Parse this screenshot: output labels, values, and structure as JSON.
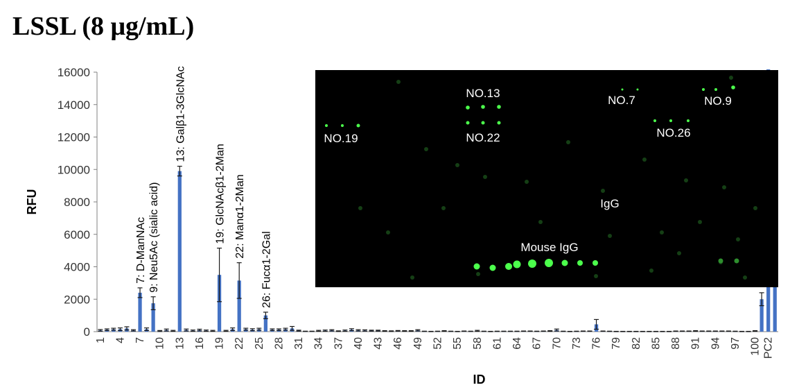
{
  "title": "LSSL (8 μg/mL)",
  "chart_data": {
    "type": "bar",
    "xlabel": "ID",
    "ylabel": "RFU",
    "ylim": [
      0,
      16000
    ],
    "yticks": [
      0,
      2000,
      4000,
      6000,
      8000,
      10000,
      12000,
      14000,
      16000
    ],
    "grid": false,
    "bar_color": "#4472C4",
    "categories": [
      "1",
      "2",
      "3",
      "4",
      "5",
      "6",
      "7",
      "8",
      "9",
      "10",
      "11",
      "12",
      "13",
      "14",
      "15",
      "16",
      "17",
      "18",
      "19",
      "20",
      "21",
      "22",
      "23",
      "24",
      "25",
      "26",
      "27",
      "28",
      "29",
      "30",
      "31",
      "32",
      "33",
      "34",
      "35",
      "36",
      "37",
      "38",
      "39",
      "40",
      "41",
      "42",
      "43",
      "44",
      "45",
      "46",
      "47",
      "48",
      "49",
      "50",
      "51",
      "52",
      "53",
      "54",
      "55",
      "56",
      "57",
      "58",
      "59",
      "60",
      "61",
      "62",
      "63",
      "64",
      "65",
      "66",
      "67",
      "68",
      "69",
      "70",
      "71",
      "72",
      "73",
      "74",
      "75",
      "76",
      "77",
      "78",
      "79",
      "80",
      "81",
      "82",
      "83",
      "84",
      "85",
      "86",
      "87",
      "88",
      "89",
      "90",
      "91",
      "92",
      "93",
      "94",
      "95",
      "96",
      "97",
      "98",
      "99",
      "100",
      "PC1",
      "PC2",
      "PC3"
    ],
    "tick_labels": [
      "1",
      "4",
      "7",
      "10",
      "13",
      "16",
      "19",
      "22",
      "25",
      "28",
      "31",
      "34",
      "37",
      "40",
      "43",
      "46",
      "49",
      "52",
      "55",
      "58",
      "61",
      "64",
      "67",
      "70",
      "73",
      "76",
      "79",
      "82",
      "85",
      "88",
      "91",
      "94",
      "97",
      "100",
      "PC2"
    ],
    "values": [
      80,
      120,
      150,
      150,
      200,
      80,
      2400,
      150,
      1750,
      40,
      100,
      50,
      9900,
      100,
      60,
      100,
      60,
      50,
      3500,
      50,
      150,
      3150,
      150,
      120,
      150,
      1000,
      120,
      120,
      150,
      200,
      60,
      20,
      20,
      50,
      60,
      80,
      30,
      60,
      120,
      80,
      70,
      60,
      60,
      40,
      30,
      50,
      40,
      40,
      80,
      20,
      10,
      20,
      40,
      20,
      10,
      30,
      20,
      50,
      20,
      10,
      20,
      20,
      20,
      20,
      30,
      30,
      20,
      30,
      40,
      100,
      20,
      10,
      20,
      30,
      30,
      450,
      30,
      20,
      10,
      10,
      10,
      10,
      10,
      10,
      10,
      10,
      10,
      30,
      30,
      30,
      40,
      30,
      30,
      30,
      30,
      30,
      20,
      10,
      10,
      40,
      2000,
      17000,
      4200
    ],
    "errors": [
      50,
      50,
      60,
      80,
      100,
      40,
      300,
      80,
      400,
      30,
      60,
      30,
      300,
      60,
      40,
      50,
      40,
      30,
      1650,
      30,
      80,
      1100,
      60,
      60,
      60,
      200,
      50,
      50,
      60,
      120,
      30,
      10,
      10,
      30,
      40,
      40,
      20,
      40,
      60,
      40,
      40,
      30,
      30,
      20,
      20,
      20,
      20,
      20,
      40,
      10,
      10,
      10,
      20,
      10,
      10,
      10,
      10,
      30,
      10,
      10,
      10,
      10,
      10,
      10,
      10,
      10,
      10,
      10,
      20,
      60,
      10,
      10,
      10,
      10,
      10,
      300,
      10,
      10,
      10,
      10,
      10,
      10,
      10,
      10,
      10,
      10,
      10,
      10,
      10,
      10,
      20,
      10,
      10,
      10,
      10,
      10,
      10,
      10,
      10,
      20,
      400,
      0,
      80
    ],
    "annotations": [
      {
        "id": "7",
        "text": "7: D-ManNAc"
      },
      {
        "id": "9",
        "text": "9: Neu5Ac (sialic acid)"
      },
      {
        "id": "13",
        "text": "13: Galβ1-3GlcNAc"
      },
      {
        "id": "19",
        "text": "19: GlcNAcβ1-2Man"
      },
      {
        "id": "22",
        "text": "22: Manα1-2Man"
      },
      {
        "id": "26",
        "text": "26: Fucα1-2Gal"
      }
    ]
  },
  "inset": {
    "background": "#000000",
    "spot_color": "#4cff4c",
    "labels": [
      "NO.13",
      "NO.7",
      "NO.9",
      "NO.19",
      "NO.22",
      "NO.26",
      "IgG",
      "Mouse IgG"
    ]
  }
}
